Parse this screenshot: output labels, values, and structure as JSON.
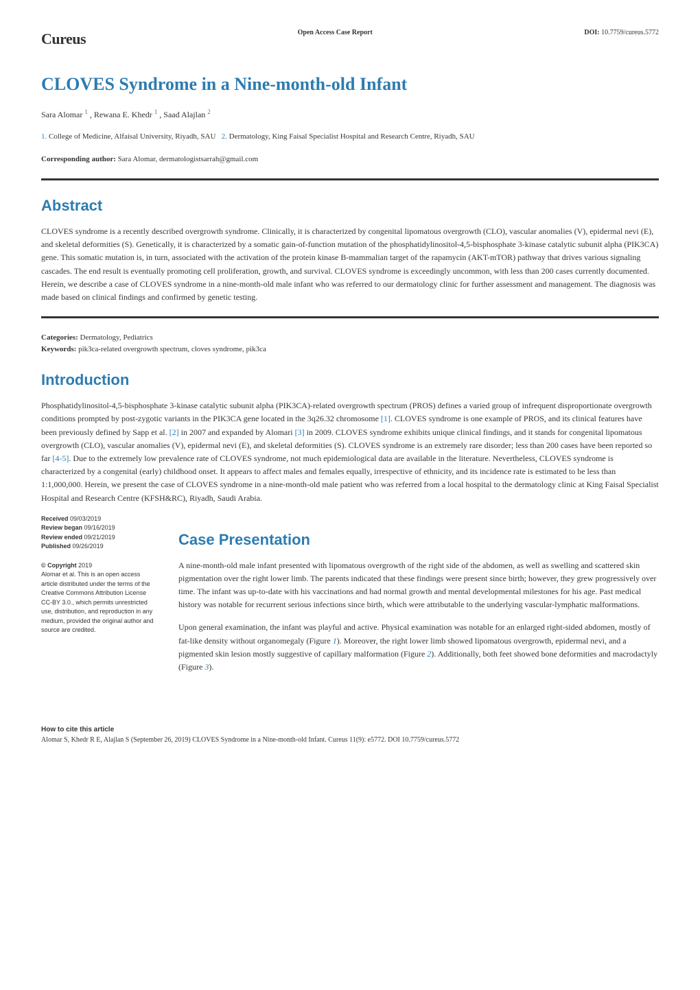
{
  "header": {
    "brand": "Cureus",
    "doc_type": "Open Access Case Report",
    "doi_label": "DOI:",
    "doi_value": "10.7759/cureus.5772"
  },
  "title": "CLOVES Syndrome in a Nine-month-old Infant",
  "authors": {
    "list": "Sara Alomar ¹ , Rewana E. Khedr ¹ , Saad Alajlan ²",
    "a1_name": "Sara Alomar",
    "a1_sup": "1",
    "a2_name": "Rewana E. Khedr",
    "a2_sup": "1",
    "a3_name": "Saad Alajlan",
    "a3_sup": "2"
  },
  "affiliations": {
    "n1": "1.",
    "t1": "College of Medicine, Alfaisal University, Riyadh, SAU",
    "n2": "2.",
    "t2": "Dermatology, King Faisal Specialist Hospital and Research Centre, Riyadh, SAU"
  },
  "corresponding": {
    "label": "Corresponding author:",
    "text": "Sara Alomar, dermatologistsarrah@gmail.com"
  },
  "abstract": {
    "heading": "Abstract",
    "text": "CLOVES syndrome is a recently described overgrowth syndrome. Clinically, it is characterized by congenital lipomatous overgrowth (CLO), vascular anomalies (V), epidermal nevi (E), and skeletal deformities (S). Genetically, it is characterized by a somatic gain-of-function mutation of the phosphatidylinositol-4,5-bisphosphate 3-kinase catalytic subunit alpha (PIK3CA) gene. This somatic mutation is, in turn, associated with the activation of the protein kinase B-mammalian target of the rapamycin (AKT-mTOR) pathway that drives various signaling cascades. The end result is eventually promoting cell proliferation, growth, and survival. CLOVES syndrome is exceedingly uncommon, with less than 200 cases currently documented. Herein, we describe a case of CLOVES syndrome in a nine-month-old male infant who was referred to our dermatology clinic for further assessment and management. The diagnosis was made based on clinical findings and confirmed by genetic testing."
  },
  "categories": {
    "label": "Categories:",
    "text": "Dermatology, Pediatrics"
  },
  "keywords": {
    "label": "Keywords:",
    "text": "pik3ca-related overgrowth spectrum, cloves syndrome, pik3ca"
  },
  "introduction": {
    "heading": "Introduction",
    "p1a": "Phosphatidylinositol-4,5-bisphosphate 3-kinase catalytic subunit alpha (PIK3CA)-related overgrowth spectrum (PROS) defines a varied group of infrequent disproportionate overgrowth conditions prompted by post-zygotic variants in the PIK3CA gene located in the 3q26.32 chromosome ",
    "r1": "[1]",
    "p1b": ". CLOVES syndrome is one example of PROS, and its clinical features have been previously defined by Sapp et al. ",
    "r2": "[2]",
    "p1c": " in 2007 and expanded by Alomari ",
    "r3": "[3]",
    "p1d": " in 2009. CLOVES syndrome exhibits unique clinical findings, and it stands for congenital lipomatous overgrowth (CLO), vascular anomalies (V), epidermal nevi (E), and skeletal deformities (S). CLOVES syndrome is an extremely rare disorder; less than 200 cases have been reported so far ",
    "r4": "[4-5]",
    "p1e": ". Due to the extremely low prevalence rate of CLOVES syndrome, not much epidemiological data are available in the literature. Nevertheless, CLOVES syndrome is characterized by a congenital (early) childhood onset. It appears to affect males and females equally, irrespective of ethnicity, and its incidence rate is estimated to be less than 1:1,000,000. Herein, we present the case of CLOVES syndrome in a nine-month-old male patient who was referred from a local hospital to the dermatology clinic at King Faisal Specialist Hospital and Research Centre (KFSH&RC), Riyadh, Saudi Arabia."
  },
  "case": {
    "heading": "Case Presentation",
    "p1": "A nine-month-old male infant presented with lipomatous overgrowth of the right side of the abdomen, as well as swelling and scattered skin pigmentation over the right lower limb. The parents indicated that these findings were present since birth; however, they grew progressively over time. The infant was up-to-date with his vaccinations and had normal growth and mental developmental milestones for his age. Past medical history was notable for recurrent serious infections since birth, which were attributable to the underlying vascular-lymphatic malformations.",
    "p2a": "Upon general examination, the infant was playful and active. Physical examination was notable for an enlarged right-sided abdomen, mostly of fat-like density without organomegaly (Figure ",
    "f1": "1",
    "p2b": "). Moreover, the right lower limb showed lipomatous overgrowth, epidermal nevi, and a pigmented skin lesion mostly suggestive of capillary malformation (Figure ",
    "f2": "2",
    "p2c": "). Additionally, both feet showed bone deformities and macrodactyly (Figure ",
    "f3": "3",
    "p2d": ")."
  },
  "sidebar": {
    "received_label": "Received",
    "received_date": "09/03/2019",
    "review_began_label": "Review began",
    "review_began_date": "09/16/2019",
    "review_ended_label": "Review ended",
    "review_ended_date": "09/21/2019",
    "published_label": "Published",
    "published_date": "09/26/2019",
    "copyright_label": "© Copyright",
    "copyright_year": "2019",
    "copyright_text": "Alomar et al. This is an open access article distributed under the terms of the Creative Commons Attribution License CC-BY 3.0., which permits unrestricted use, distribution, and reproduction in any medium, provided the original author and source are credited."
  },
  "footer": {
    "cite_label": "How to cite this article",
    "cite_text": "Alomar S, Khedr R E, Alajlan S (September 26, 2019) CLOVES Syndrome in a Nine-month-old Infant. Cureus 11(9): e5772. DOI 10.7759/cureus.5772"
  },
  "colors": {
    "heading_blue": "#2c7cb0",
    "text": "#333333",
    "rule": "#333333",
    "background": "#ffffff"
  }
}
